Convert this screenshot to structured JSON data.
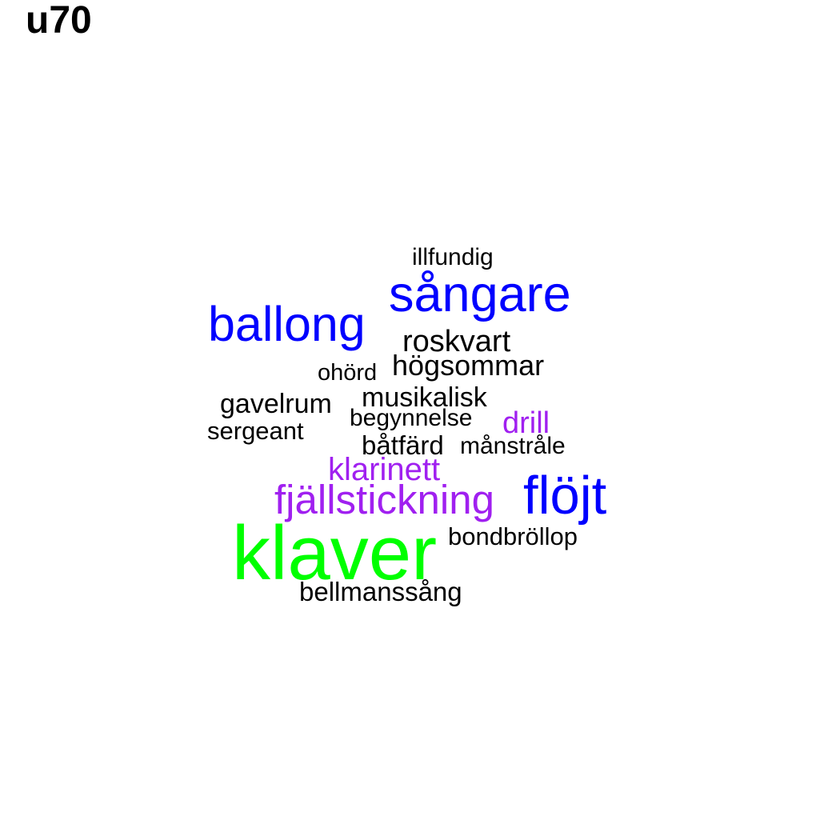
{
  "title": "u70",
  "colors": {
    "black": "#000000",
    "blue": "#0000ff",
    "purple": "#a020f0",
    "green": "#00ff00",
    "background": "#ffffff"
  },
  "words": {
    "illfundig": "illfundig",
    "sangare": "sångare",
    "ballong": "ballong",
    "roskvart": "roskvart",
    "hogsommar": "högsommar",
    "ohord": "ohörd",
    "musikalisk": "musikalisk",
    "gavelrum": "gavelrum",
    "begynnelse": "begynnelse",
    "drill": "drill",
    "sergeant": "sergeant",
    "batfard": "båtfärd",
    "manstrale": "månstråle",
    "klarinett": "klarinett",
    "fjallstickning": "fjällstickning",
    "flojt": "flöjt",
    "bondbrollop": "bondbröllop",
    "klaver": "klaver",
    "bellmanssang": "bellmanssång"
  }
}
